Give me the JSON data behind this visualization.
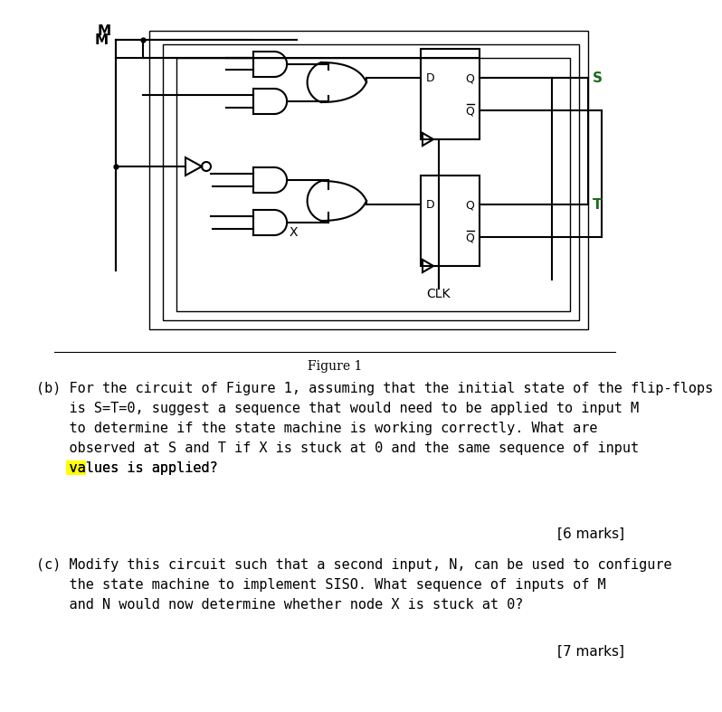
{
  "figure_caption": "Figure 1",
  "question_b": "(b) For the circuit of Figure 1, assuming that the initial state of the flip-flops\n    is S=T=0, suggest a sequence that would need to be applied to input M\n    to determine if the state machine is working correctly. What are\n    observed at S and T if X is stuck at 0 and the same sequence of input\n    values is applied?",
  "marks_b": "[6 marks]",
  "question_c": "(c) Modify this circuit such that a second input, N, can be used to configure\n    the state machine to implement SISO. What sequence of inputs of M\n    and N would now determine whether node X is stuck at 0?",
  "marks_c": "[7 marks]",
  "highlight_word": "val",
  "bg_color": "#ffffff",
  "text_color": "#000000"
}
